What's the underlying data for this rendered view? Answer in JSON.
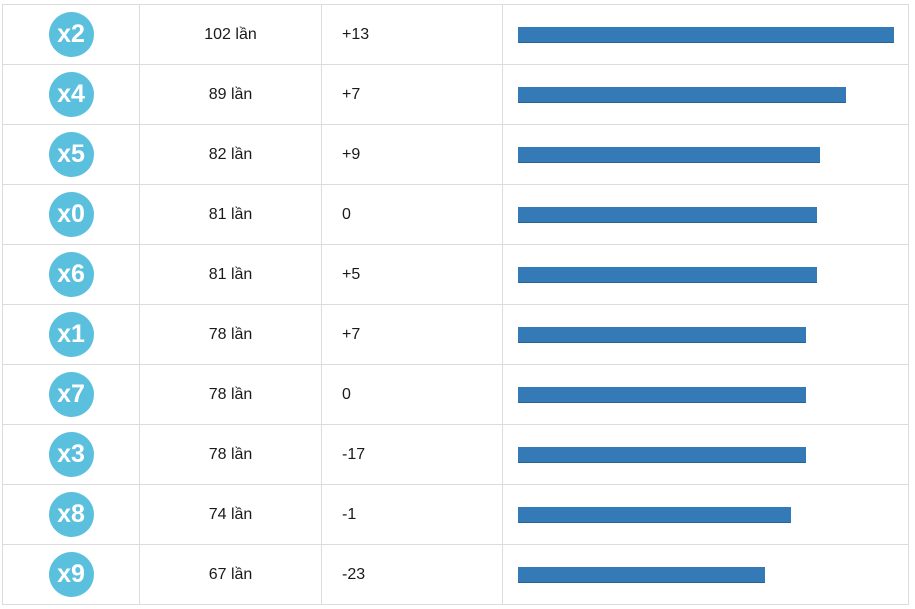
{
  "theme": {
    "badge_color": "#5bc0de",
    "bar_color": "#337ab7"
  },
  "rows": [
    {
      "badge": "x2",
      "count": "102 lần",
      "delta": "+13",
      "share": 1.0
    },
    {
      "badge": "x4",
      "count": "89 lần",
      "delta": "+7",
      "share": 0.873
    },
    {
      "badge": "x5",
      "count": "82 lần",
      "delta": "+9",
      "share": 0.804
    },
    {
      "badge": "x0",
      "count": "81 lần",
      "delta": "0",
      "share": 0.794
    },
    {
      "badge": "x6",
      "count": "81 lần",
      "delta": "+5",
      "share": 0.794
    },
    {
      "badge": "x1",
      "count": "78 lần",
      "delta": "+7",
      "share": 0.765
    },
    {
      "badge": "x7",
      "count": "78 lần",
      "delta": "0",
      "share": 0.765
    },
    {
      "badge": "x3",
      "count": "78 lần",
      "delta": "-17",
      "share": 0.765
    },
    {
      "badge": "x8",
      "count": "74 lần",
      "delta": "-1",
      "share": 0.725
    },
    {
      "badge": "x9",
      "count": "67 lần",
      "delta": "-23",
      "share": 0.657
    }
  ]
}
